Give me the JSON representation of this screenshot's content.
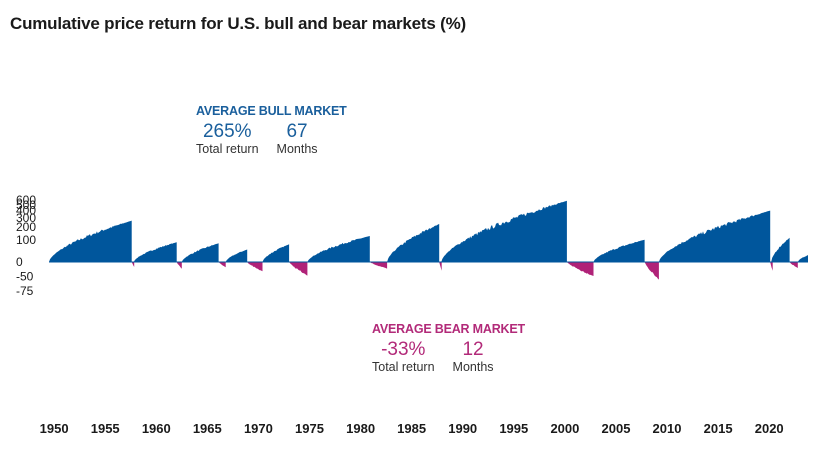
{
  "title": "Cumulative price return for U.S. bull and bear markets (%)",
  "colors": {
    "bull": "#00569c",
    "bear": "#b02278"
  },
  "bull_avg": {
    "heading": "AVERAGE BULL MARKET",
    "return_value": "265%",
    "return_label": "Total return",
    "duration_value": "67",
    "duration_label": "Months"
  },
  "bear_avg": {
    "heading": "AVERAGE BEAR MARKET",
    "return_value": "-33%",
    "return_label": "Total return",
    "duration_value": "12",
    "duration_label": "Months"
  },
  "chart_data": {
    "type": "area",
    "title": "Cumulative price return for U.S. bull and bear markets (%)",
    "y_scale": "log-return",
    "y_ticks": [
      600,
      500,
      400,
      300,
      200,
      100,
      0,
      -50,
      -75
    ],
    "x_ticks": [
      1950,
      1955,
      1960,
      1965,
      1970,
      1975,
      1980,
      1985,
      1990,
      1995,
      2000,
      2005,
      2010,
      2015,
      2020
    ],
    "xlim": [
      1949.5,
      2023.8
    ],
    "grid": false,
    "legend": "none",
    "bull_markets": [
      {
        "start": 1949.5,
        "end": 1957.6,
        "peak": 266
      },
      {
        "start": 1957.8,
        "end": 1962.0,
        "peak": 86
      },
      {
        "start": 1962.5,
        "end": 1966.1,
        "peak": 80
      },
      {
        "start": 1966.8,
        "end": 1968.9,
        "peak": 48
      },
      {
        "start": 1970.4,
        "end": 1973.0,
        "peak": 74
      },
      {
        "start": 1974.8,
        "end": 1980.9,
        "peak": 126
      },
      {
        "start": 1982.6,
        "end": 1987.7,
        "peak": 229
      },
      {
        "start": 1987.9,
        "end": 2000.2,
        "peak": 582
      },
      {
        "start": 2002.8,
        "end": 2007.8,
        "peak": 101
      },
      {
        "start": 2009.2,
        "end": 2020.1,
        "peak": 401
      },
      {
        "start": 2020.2,
        "end": 2022.0,
        "peak": 114
      },
      {
        "start": 2022.8,
        "end": 2023.8,
        "peak": 24
      }
    ],
    "bear_markets": [
      {
        "start": 1957.6,
        "end": 1957.8,
        "trough": -21
      },
      {
        "start": 1962.0,
        "end": 1962.5,
        "trough": -28
      },
      {
        "start": 1966.1,
        "end": 1966.8,
        "trough": -22
      },
      {
        "start": 1968.9,
        "end": 1970.4,
        "trough": -36
      },
      {
        "start": 1973.0,
        "end": 1974.8,
        "trough": -48
      },
      {
        "start": 1980.9,
        "end": 1982.6,
        "trough": -27
      },
      {
        "start": 1987.7,
        "end": 1987.9,
        "trough": -34
      },
      {
        "start": 2000.2,
        "end": 2002.8,
        "trough": -49
      },
      {
        "start": 2007.8,
        "end": 2009.2,
        "trough": -57
      },
      {
        "start": 2020.1,
        "end": 2020.2,
        "trough": -34
      },
      {
        "start": 2022.0,
        "end": 2022.8,
        "trough": -25
      }
    ]
  }
}
